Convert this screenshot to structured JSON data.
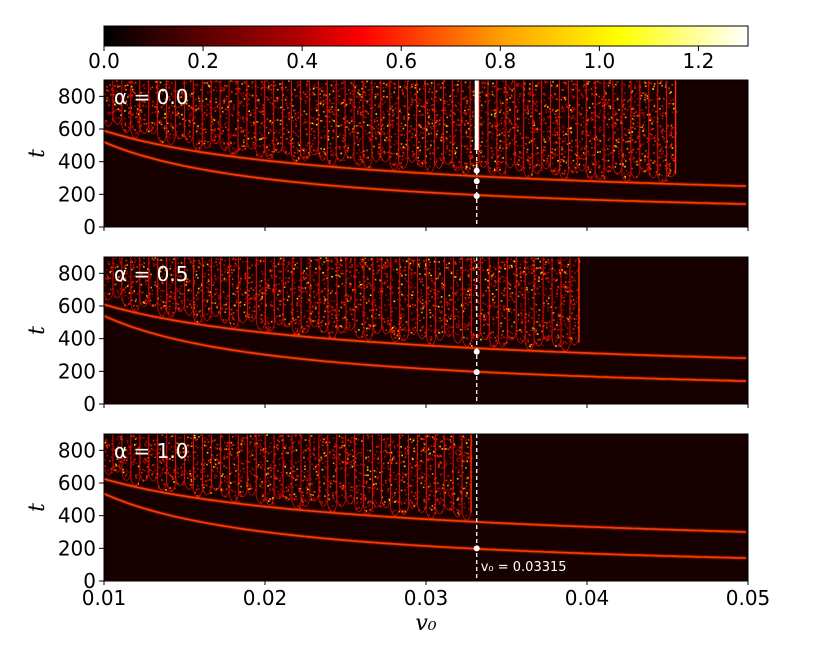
{
  "chart_data": {
    "type": "heatmap",
    "colormap": "hot",
    "colorbar": {
      "range": [
        0.0,
        1.3
      ],
      "ticks": [
        "0.0",
        "0.2",
        "0.4",
        "0.6",
        "0.8",
        "1.0",
        "1.2"
      ],
      "tick_values": [
        0.0,
        0.2,
        0.4,
        0.6,
        0.8,
        1.0,
        1.2
      ],
      "colors": [
        "#000000",
        "#ff0000",
        "#ffb000",
        "#ffff00",
        "#ffffff"
      ]
    },
    "xlabel": "v₀",
    "ylabel": "t",
    "xlim": [
      0.01,
      0.05
    ],
    "ylim": [
      0,
      900
    ],
    "xticks": [
      "0.01",
      "0.02",
      "0.03",
      "0.04",
      "0.05"
    ],
    "xtick_values": [
      0.01,
      0.02,
      0.03,
      0.04,
      0.05
    ],
    "yticks": [
      "0",
      "200",
      "400",
      "600",
      "800"
    ],
    "ytick_values": [
      0,
      200,
      400,
      600,
      800
    ],
    "marker_line": {
      "x": 0.03315
    },
    "annotation": "v₀ = 0.03315",
    "panels": [
      {
        "label": "α = 0.0",
        "alpha": 0.0,
        "chaos_end_v0": 0.0455,
        "curves": [
          {
            "t_at_v0_min": 520,
            "t_at_v0_max": 140
          },
          {
            "t_at_v0_min": 590,
            "t_at_v0_max": 250
          }
        ],
        "points": [
          {
            "v0": 0.03315,
            "t": 190
          },
          {
            "v0": 0.03315,
            "t": 280
          },
          {
            "v0": 0.03315,
            "t": 345
          }
        ]
      },
      {
        "label": "α = 0.5",
        "alpha": 0.5,
        "chaos_end_v0": 0.0395,
        "curves": [
          {
            "t_at_v0_min": 540,
            "t_at_v0_max": 140
          },
          {
            "t_at_v0_min": 610,
            "t_at_v0_max": 280
          }
        ],
        "points": [
          {
            "v0": 0.03315,
            "t": 195
          },
          {
            "v0": 0.03315,
            "t": 320
          }
        ]
      },
      {
        "label": "α = 1.0",
        "alpha": 1.0,
        "chaos_end_v0": 0.0328,
        "curves": [
          {
            "t_at_v0_min": 535,
            "t_at_v0_max": 140
          },
          {
            "t_at_v0_min": 625,
            "t_at_v0_max": 300
          }
        ],
        "points": [
          {
            "v0": 0.03315,
            "t": 200
          }
        ]
      }
    ]
  }
}
